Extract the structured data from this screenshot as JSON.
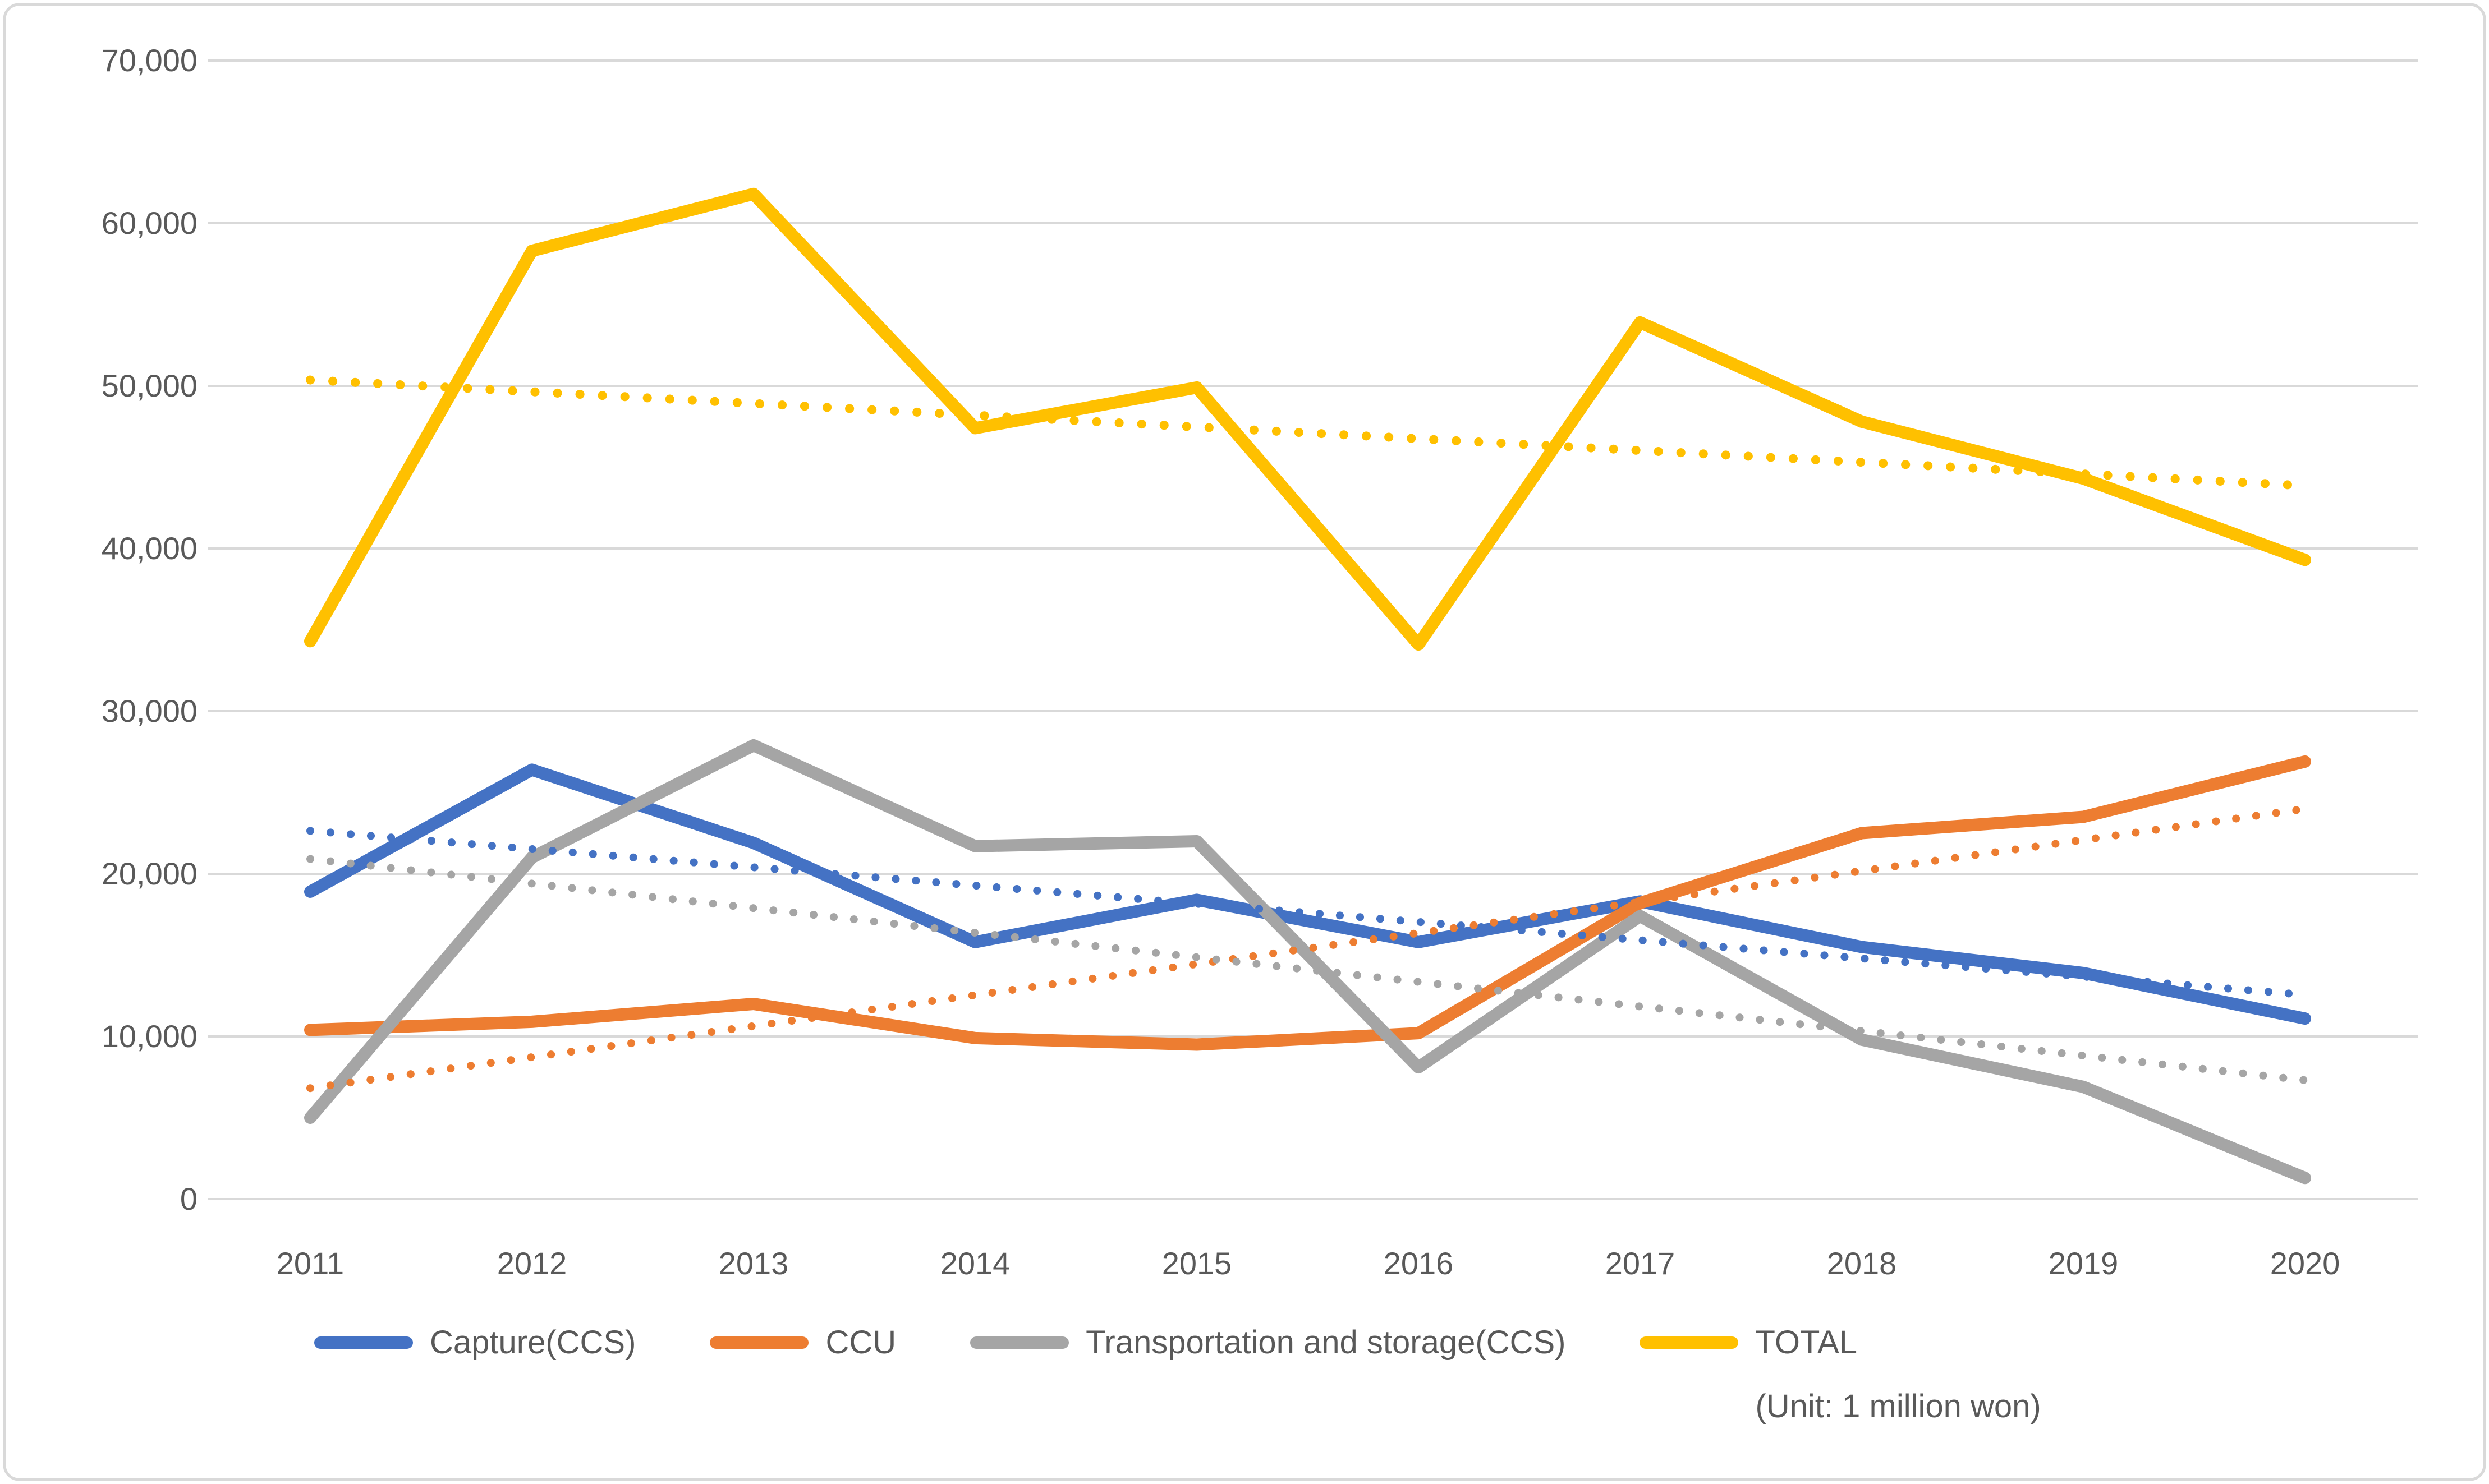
{
  "chart_data": {
    "type": "line",
    "title": "",
    "unit_note": "(Unit: 1 million won)",
    "categories": [
      "2011",
      "2012",
      "2013",
      "2014",
      "2015",
      "2016",
      "2017",
      "2018",
      "2019",
      "2020"
    ],
    "series": [
      {
        "name": "Capture(CCS)",
        "color": "#4472C4",
        "values": [
          18900,
          26400,
          21900,
          15800,
          18400,
          15800,
          18300,
          15500,
          13900,
          11100
        ],
        "trendline": {
          "start": 22640,
          "end": 12560
        }
      },
      {
        "name": "CCU",
        "color": "#ED7D31",
        "values": [
          10400,
          10900,
          12000,
          9900,
          9500,
          10200,
          18200,
          22500,
          23500,
          26900
        ],
        "trendline": {
          "start": 6820,
          "end": 23990
        }
      },
      {
        "name": "Transportation and storage(CCS)",
        "color": "#A5A5A5",
        "values": [
          5000,
          21000,
          27900,
          21700,
          22000,
          8100,
          17400,
          9800,
          6900,
          1300
        ],
        "trendline": {
          "start": 20910,
          "end": 7310
        }
      },
      {
        "name": "TOTAL",
        "color": "#FFC000",
        "values": [
          34300,
          58300,
          61800,
          47400,
          49900,
          34100,
          53900,
          47800,
          44300,
          39300
        ],
        "trendline": {
          "start": 50360,
          "end": 43860
        }
      }
    ],
    "y_axis": {
      "min": 0,
      "max": 70000,
      "step": 10000,
      "tick_labels": [
        "0",
        "10,000",
        "20,000",
        "30,000",
        "40,000",
        "50,000",
        "60,000",
        "70,000"
      ]
    },
    "x_axis": {
      "tick_labels": [
        "2011",
        "2012",
        "2013",
        "2014",
        "2015",
        "2016",
        "2017",
        "2018",
        "2019",
        "2020"
      ]
    },
    "grid": true,
    "legend_position": "bottom",
    "styles": {
      "gridline_color": "#D9D9D9",
      "axis_text_color": "#595959",
      "border_color": "#D9D9D9",
      "background": "#FFFFFF"
    }
  }
}
